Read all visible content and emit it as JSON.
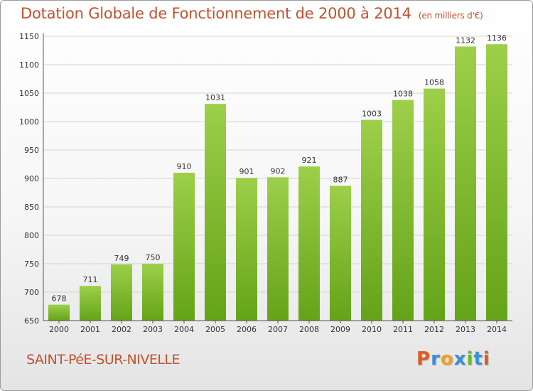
{
  "title": "Dotation Globale de Fonctionnement de 2000 à 2014",
  "subtitle": "(en milliers d'€)",
  "commune": "SAINT-PéE-SUR-NIVELLE",
  "logo": {
    "letters": [
      "P",
      "r",
      "o",
      "x",
      "i",
      "t",
      "i"
    ],
    "colors": [
      "#e05a1e",
      "#3a8fd6",
      "#f0a020",
      "#3a8fd6",
      "#6ab82a",
      "#3a8fd6",
      "#e05a1e"
    ]
  },
  "colors": {
    "accent": "#c0522f",
    "bar_top": "#9dcf4a",
    "bar_bottom": "#64a318",
    "grid": "#d4d4d4",
    "axis": "#555555"
  },
  "chart_data": {
    "type": "bar",
    "categories": [
      "2000",
      "2001",
      "2002",
      "2003",
      "2004",
      "2005",
      "2006",
      "2007",
      "2008",
      "2009",
      "2010",
      "2011",
      "2012",
      "2013",
      "2014"
    ],
    "values": [
      678,
      711,
      749,
      750,
      910,
      1031,
      901,
      902,
      921,
      887,
      1003,
      1038,
      1058,
      1132,
      1136
    ],
    "ylim": [
      650,
      1150
    ],
    "yticks": [
      650,
      700,
      750,
      800,
      850,
      900,
      950,
      1000,
      1050,
      1100,
      1150
    ],
    "grid": true,
    "data_labels": true
  }
}
